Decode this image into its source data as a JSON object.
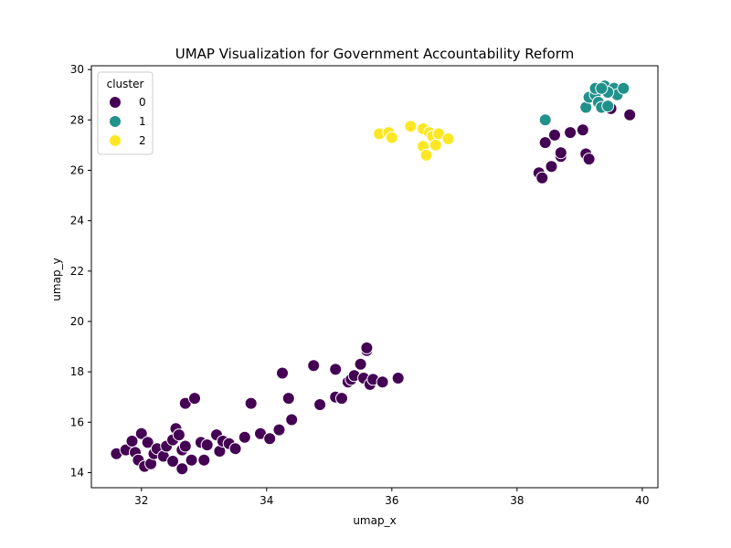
{
  "chart_data": {
    "type": "scatter",
    "title": "UMAP Visualization for Government Accountability Reform",
    "xlabel": "umap_x",
    "ylabel": "umap_y",
    "xlim": [
      31.2,
      40.25
    ],
    "ylim": [
      13.4,
      30.15
    ],
    "xticks": [
      32,
      34,
      36,
      38,
      40
    ],
    "yticks": [
      14,
      16,
      18,
      20,
      22,
      24,
      26,
      28,
      30
    ],
    "grid": false,
    "legend": {
      "title": "cluster",
      "placement": "top-left"
    },
    "series": [
      {
        "name": "0",
        "color": "#440154",
        "points": [
          [
            31.6,
            14.75
          ],
          [
            31.75,
            14.9
          ],
          [
            31.85,
            15.25
          ],
          [
            31.9,
            14.8
          ],
          [
            31.95,
            14.5
          ],
          [
            32.05,
            14.25
          ],
          [
            32.0,
            15.55
          ],
          [
            32.1,
            15.2
          ],
          [
            32.15,
            14.35
          ],
          [
            32.2,
            14.75
          ],
          [
            32.25,
            14.95
          ],
          [
            32.35,
            14.65
          ],
          [
            32.4,
            15.05
          ],
          [
            32.5,
            14.45
          ],
          [
            32.5,
            15.3
          ],
          [
            32.55,
            15.75
          ],
          [
            32.6,
            15.5
          ],
          [
            32.65,
            14.15
          ],
          [
            32.65,
            14.9
          ],
          [
            32.7,
            15.05
          ],
          [
            32.7,
            16.75
          ],
          [
            32.8,
            14.5
          ],
          [
            32.85,
            16.95
          ],
          [
            32.95,
            15.2
          ],
          [
            33.0,
            14.5
          ],
          [
            33.05,
            15.1
          ],
          [
            33.2,
            15.5
          ],
          [
            33.25,
            14.85
          ],
          [
            33.3,
            15.25
          ],
          [
            33.4,
            15.15
          ],
          [
            33.5,
            14.95
          ],
          [
            33.65,
            15.4
          ],
          [
            33.75,
            16.75
          ],
          [
            33.9,
            15.55
          ],
          [
            34.05,
            15.35
          ],
          [
            34.2,
            15.7
          ],
          [
            34.25,
            17.95
          ],
          [
            34.35,
            16.95
          ],
          [
            34.4,
            16.1
          ],
          [
            34.75,
            18.25
          ],
          [
            34.85,
            16.7
          ],
          [
            35.1,
            18.1
          ],
          [
            35.1,
            17.0
          ],
          [
            35.2,
            16.95
          ],
          [
            35.3,
            17.6
          ],
          [
            35.35,
            17.7
          ],
          [
            35.4,
            17.85
          ],
          [
            35.5,
            18.3
          ],
          [
            35.55,
            17.75
          ],
          [
            35.6,
            18.85
          ],
          [
            35.6,
            18.95
          ],
          [
            35.65,
            17.5
          ],
          [
            35.7,
            17.7
          ],
          [
            35.85,
            17.6
          ],
          [
            36.1,
            17.75
          ],
          [
            38.35,
            25.9
          ],
          [
            38.4,
            25.7
          ],
          [
            38.45,
            27.1
          ],
          [
            38.55,
            26.15
          ],
          [
            38.6,
            27.4
          ],
          [
            38.7,
            26.55
          ],
          [
            38.7,
            26.7
          ],
          [
            38.85,
            27.5
          ],
          [
            39.05,
            27.6
          ],
          [
            39.1,
            26.65
          ],
          [
            39.15,
            26.45
          ],
          [
            39.5,
            28.45
          ],
          [
            39.8,
            28.2
          ]
        ]
      },
      {
        "name": "1",
        "color": "#21918c",
        "points": [
          [
            38.45,
            28.0
          ],
          [
            39.1,
            28.5
          ],
          [
            39.15,
            28.9
          ],
          [
            39.25,
            29.0
          ],
          [
            39.25,
            29.25
          ],
          [
            39.3,
            28.7
          ],
          [
            39.35,
            28.5
          ],
          [
            39.4,
            29.35
          ],
          [
            39.45,
            28.55
          ],
          [
            39.55,
            29.25
          ],
          [
            39.6,
            29.0
          ],
          [
            39.7,
            29.25
          ],
          [
            39.45,
            29.1
          ],
          [
            39.35,
            29.25
          ]
        ]
      },
      {
        "name": "2",
        "color": "#fde725",
        "points": [
          [
            35.8,
            27.45
          ],
          [
            35.95,
            27.5
          ],
          [
            36.0,
            27.3
          ],
          [
            36.3,
            27.75
          ],
          [
            36.5,
            27.65
          ],
          [
            36.5,
            26.95
          ],
          [
            36.55,
            26.6
          ],
          [
            36.6,
            27.5
          ],
          [
            36.65,
            27.35
          ],
          [
            36.75,
            27.45
          ],
          [
            36.7,
            27.0
          ],
          [
            36.9,
            27.25
          ]
        ]
      }
    ]
  }
}
